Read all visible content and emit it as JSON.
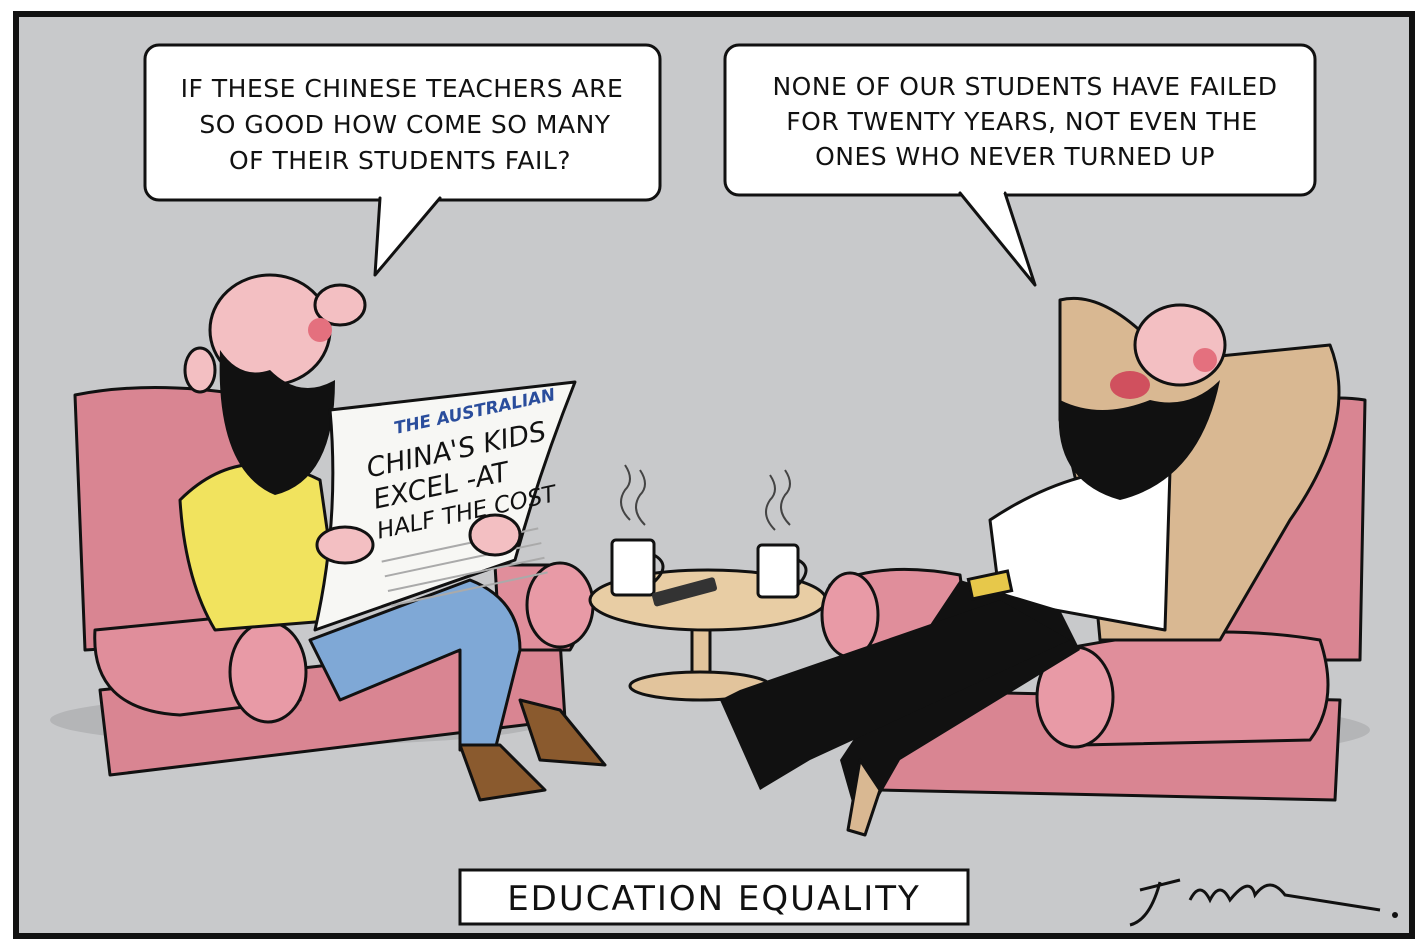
{
  "bubbles": [
    {
      "lines": [
        "IF THESE CHINESE TEACHERS ARE",
        "SO GOOD HOW COME SO MANY",
        "OF THEIR STUDENTS FAIL?"
      ]
    },
    {
      "lines": [
        "NONE OF OUR STUDENTS HAVE FAILED",
        "FOR TWENTY YEARS, NOT EVEN THE",
        "ONES WHO NEVER TURNED UP"
      ]
    }
  ],
  "newspaper": {
    "masthead": "THE AUSTRALIAN",
    "headline": [
      "CHINA'S KIDS",
      "EXCEL -AT",
      "HALF THE COST"
    ]
  },
  "caption": "EDUCATION EQUALITY"
}
